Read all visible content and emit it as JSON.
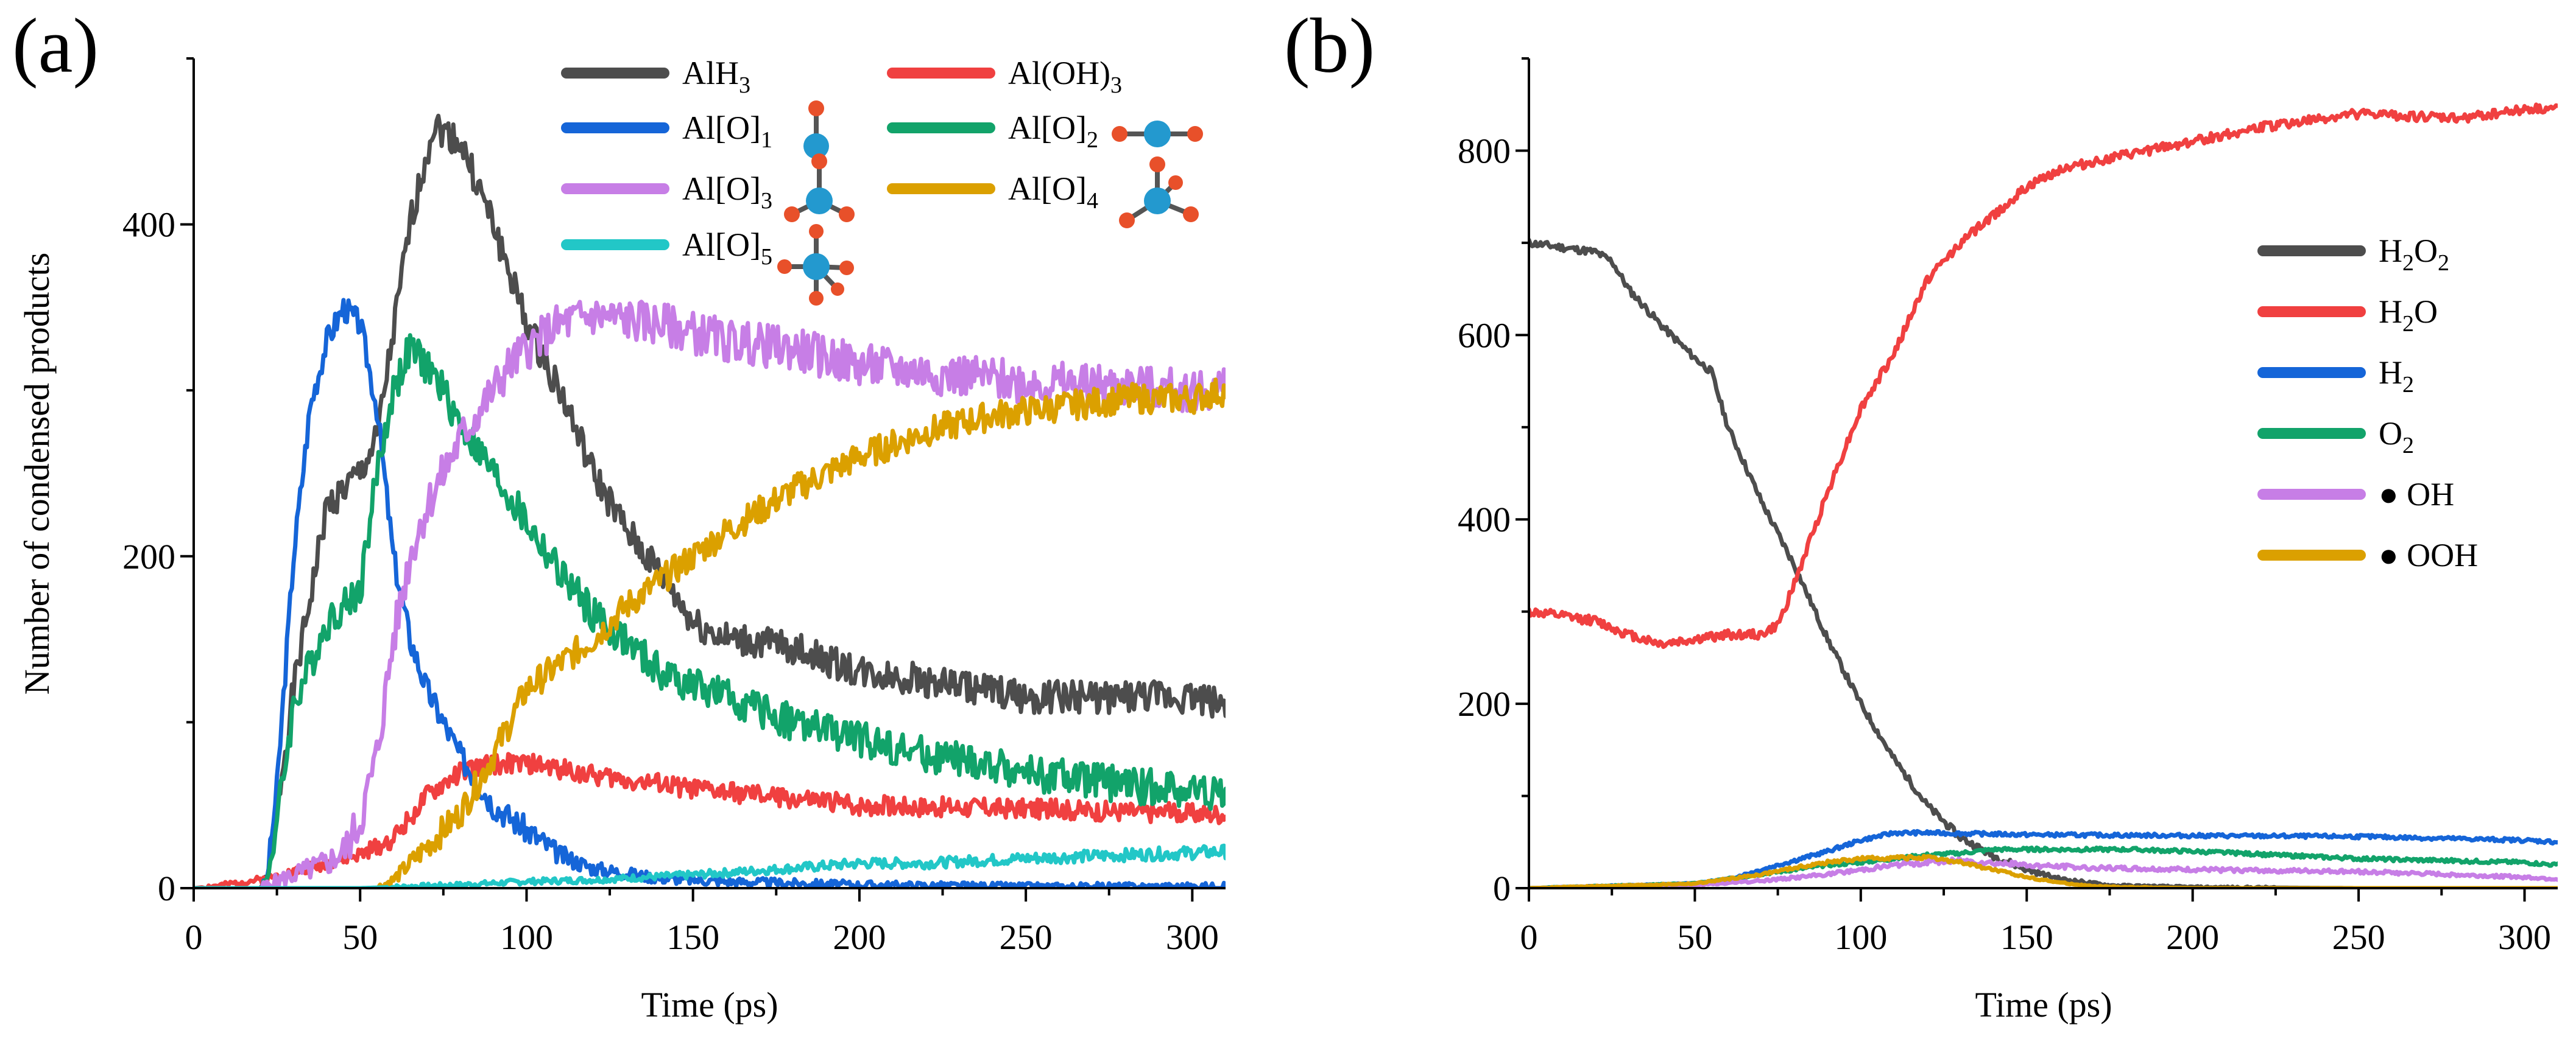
{
  "chart_data": [
    {
      "type": "line",
      "panel_label": "(a)",
      "xlabel": "Time (ps)",
      "ylabel": "Number of condensed products",
      "xlim": [
        0,
        310
      ],
      "ylim": [
        0,
        500
      ],
      "xticks": [
        0,
        50,
        100,
        150,
        200,
        250,
        300
      ],
      "yticks": [
        0,
        200,
        400
      ],
      "yminor": [
        100,
        300,
        500
      ],
      "legend_placement": "top-right",
      "series": [
        {
          "name": "AlH",
          "sub": "3",
          "color": "#4d4d4d",
          "noise": 10,
          "seed": 1,
          "x": [
            0,
            20,
            22,
            30,
            40,
            50,
            55,
            65,
            72,
            80,
            90,
            100,
            110,
            120,
            130,
            140,
            150,
            160,
            180,
            200,
            220,
            250,
            280,
            300,
            310
          ],
          "y": [
            0,
            0,
            5,
            120,
            230,
            250,
            270,
            400,
            460,
            450,
            400,
            340,
            300,
            250,
            215,
            190,
            160,
            150,
            145,
            130,
            125,
            115,
            115,
            115,
            110
          ]
        },
        {
          "name": "Al(OH)",
          "sub": "3",
          "color": "#f04040",
          "noise": 6,
          "seed": 2,
          "x": [
            0,
            10,
            15,
            20,
            30,
            40,
            50,
            60,
            70,
            80,
            90,
            100,
            110,
            120,
            150,
            200,
            250,
            300,
            310
          ],
          "y": [
            0,
            2,
            4,
            5,
            10,
            15,
            20,
            30,
            55,
            70,
            75,
            75,
            72,
            68,
            60,
            50,
            48,
            45,
            45
          ]
        },
        {
          "name": "Al[O]",
          "sub": "1",
          "color": "#1565d8",
          "noise": 8,
          "seed": 3,
          "x": [
            0,
            20,
            22,
            25,
            30,
            35,
            40,
            45,
            50,
            55,
            60,
            65,
            70,
            80,
            90,
            100,
            110,
            120,
            140,
            160,
            200,
            250,
            310
          ],
          "y": [
            0,
            0,
            5,
            60,
            200,
            290,
            330,
            350,
            340,
            290,
            200,
            150,
            120,
            80,
            50,
            35,
            20,
            12,
            6,
            4,
            2,
            1,
            1
          ]
        },
        {
          "name": "Al[O]",
          "sub": "2",
          "color": "#12a36a",
          "noise": 11,
          "seed": 4,
          "x": [
            0,
            20,
            22,
            25,
            30,
            40,
            50,
            55,
            60,
            65,
            70,
            75,
            80,
            90,
            100,
            110,
            120,
            130,
            140,
            160,
            180,
            200,
            220,
            250,
            280,
            310
          ],
          "y": [
            0,
            0,
            5,
            40,
            110,
            160,
            180,
            250,
            300,
            325,
            315,
            300,
            280,
            250,
            220,
            190,
            165,
            148,
            130,
            115,
            100,
            90,
            80,
            70,
            62,
            58
          ]
        },
        {
          "name": "Al[O]",
          "sub": "3",
          "color": "#c77ee6",
          "noise": 13,
          "seed": 5,
          "x": [
            0,
            20,
            30,
            40,
            45,
            50,
            55,
            60,
            65,
            70,
            75,
            80,
            85,
            90,
            95,
            100,
            110,
            120,
            140,
            160,
            180,
            200,
            250,
            300,
            310
          ],
          "y": [
            0,
            0,
            8,
            15,
            22,
            40,
            80,
            150,
            200,
            230,
            250,
            270,
            285,
            300,
            315,
            325,
            340,
            345,
            340,
            330,
            325,
            315,
            305,
            300,
            300
          ]
        },
        {
          "name": "Al[O]",
          "sub": "4",
          "color": "#dba000",
          "noise": 9,
          "seed": 6,
          "x": [
            0,
            55,
            60,
            65,
            70,
            80,
            90,
            95,
            100,
            110,
            120,
            130,
            140,
            150,
            160,
            180,
            200,
            220,
            240,
            260,
            280,
            300,
            310
          ],
          "y": [
            0,
            0,
            5,
            15,
            25,
            45,
            80,
            100,
            120,
            135,
            150,
            170,
            185,
            200,
            215,
            240,
            260,
            275,
            285,
            290,
            295,
            295,
            300
          ]
        },
        {
          "name": "Al[O]",
          "sub": "5",
          "color": "#22c7c7",
          "noise": 5,
          "seed": 7,
          "x": [
            0,
            50,
            80,
            100,
            120,
            150,
            180,
            200,
            220,
            250,
            280,
            310
          ],
          "y": [
            0,
            0,
            2,
            4,
            5,
            8,
            12,
            15,
            15,
            18,
            20,
            22
          ]
        }
      ]
    },
    {
      "type": "line",
      "panel_label": "(b)",
      "xlabel": "Time (ps)",
      "ylabel": "",
      "xlim": [
        0,
        310
      ],
      "ylim": [
        0,
        900
      ],
      "xticks": [
        0,
        50,
        100,
        150,
        200,
        250,
        300
      ],
      "yticks": [
        0,
        200,
        400,
        600,
        800
      ],
      "yminor": [
        100,
        300,
        500,
        700,
        900
      ],
      "legend_placement": "right",
      "series": [
        {
          "name": "H",
          "sub": "2",
          "tail": "O",
          "sub2": "2",
          "color": "#4d4d4d",
          "noise": 4,
          "seed": 11,
          "x": [
            0,
            10,
            20,
            25,
            30,
            40,
            50,
            55,
            60,
            70,
            80,
            90,
            100,
            110,
            120,
            130,
            140,
            150,
            160,
            175,
            200,
            250,
            310
          ],
          "y": [
            700,
            695,
            690,
            680,
            650,
            610,
            575,
            560,
            500,
            420,
            350,
            270,
            200,
            140,
            90,
            55,
            35,
            20,
            10,
            3,
            1,
            0,
            0
          ]
        },
        {
          "name": "H",
          "sub": "2",
          "tail": "O",
          "color": "#f04040",
          "noise": 5,
          "seed": 12,
          "x": [
            0,
            10,
            20,
            30,
            40,
            50,
            60,
            70,
            75,
            80,
            90,
            100,
            110,
            120,
            130,
            140,
            150,
            160,
            180,
            200,
            220,
            250,
            280,
            300,
            310
          ],
          "y": [
            300,
            295,
            290,
            275,
            265,
            270,
            275,
            275,
            285,
            330,
            430,
            520,
            580,
            660,
            700,
            730,
            760,
            780,
            795,
            810,
            825,
            840,
            835,
            845,
            845
          ]
        },
        {
          "name": "H",
          "sub": "2",
          "color": "#1565d8",
          "noise": 2,
          "seed": 13,
          "x": [
            0,
            50,
            60,
            70,
            80,
            90,
            100,
            110,
            120,
            150,
            200,
            250,
            300,
            310
          ],
          "y": [
            0,
            5,
            10,
            20,
            30,
            40,
            52,
            60,
            60,
            58,
            57,
            56,
            52,
            50
          ]
        },
        {
          "name": "O",
          "sub": "2",
          "color": "#12a36a",
          "noise": 2,
          "seed": 14,
          "x": [
            0,
            50,
            60,
            70,
            80,
            90,
            100,
            110,
            120,
            130,
            140,
            150,
            180,
            200,
            250,
            300,
            310
          ],
          "y": [
            0,
            5,
            10,
            15,
            20,
            25,
            28,
            32,
            36,
            38,
            42,
            42,
            42,
            40,
            32,
            28,
            25
          ]
        },
        {
          "name": "● OH",
          "color": "#c77ee6",
          "noise": 3,
          "seed": 15,
          "x": [
            0,
            50,
            70,
            90,
            100,
            110,
            120,
            130,
            150,
            170,
            200,
            250,
            300,
            310
          ],
          "y": [
            0,
            3,
            8,
            15,
            20,
            25,
            28,
            30,
            25,
            22,
            20,
            18,
            12,
            10
          ]
        },
        {
          "name": "● OOH",
          "color": "#dba000",
          "noise": 2,
          "seed": 16,
          "x": [
            0,
            50,
            60,
            70,
            80,
            90,
            100,
            110,
            120,
            130,
            140,
            150,
            160,
            170,
            180,
            200,
            310
          ],
          "y": [
            0,
            5,
            10,
            15,
            22,
            28,
            32,
            33,
            33,
            28,
            20,
            12,
            6,
            2,
            1,
            0,
            0
          ]
        }
      ]
    }
  ]
}
